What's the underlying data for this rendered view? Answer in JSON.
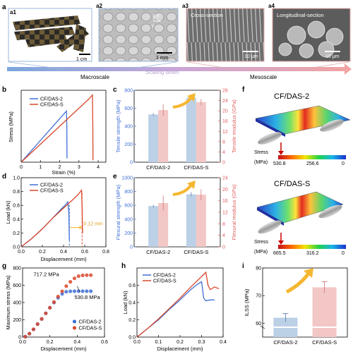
{
  "panel_a": {
    "labels": [
      "a1",
      "a2",
      "a3",
      "a4"
    ],
    "a1_scale": "1 cm",
    "a2_scale": "1 mm",
    "a3_title": "Cross-section",
    "a3_scale": "10 μm",
    "a4_title": "Longitudinal-section",
    "a4_scale": "10 μm",
    "macroscale": "Macroscale",
    "scaling": "Scaling down",
    "mesoscale": "Mesoscale",
    "axis_x": "x",
    "axis_y": "y"
  },
  "series_names": [
    "CF/DAS-2",
    "CF/DAS-S"
  ],
  "colors": {
    "das2": "#3f6fd6",
    "dass": "#d9482b",
    "bar_blue": "#bcd0e6",
    "bar_pink": "#f2c7c6",
    "arrow": "#f5b731"
  },
  "chart_data": [
    {
      "panel": "b",
      "type": "line",
      "xlabel": "Strain (%)",
      "ylabel": "Stress (MPa)",
      "xlim": [
        0,
        4.4
      ],
      "ylim": [
        0,
        760
      ],
      "xticks": [
        "0",
        "1",
        "2",
        "3",
        "4"
      ],
      "series": [
        {
          "name": "CF/DAS-2",
          "x": [
            0,
            0.5,
            1.0,
            1.5,
            2.0,
            2.35,
            2.37,
            2.38
          ],
          "y": [
            0,
            115,
            230,
            345,
            460,
            540,
            400,
            40
          ]
        },
        {
          "name": "CF/DAS-S",
          "x": [
            0,
            0.5,
            1.0,
            1.5,
            2.0,
            2.5,
            3.0,
            3.5,
            3.7,
            3.72,
            3.73
          ],
          "y": [
            0,
            95,
            190,
            285,
            380,
            475,
            570,
            665,
            710,
            400,
            20
          ]
        }
      ]
    },
    {
      "panel": "c",
      "type": "bar",
      "categories": [
        "CF/DAS-2",
        "CF/DAS-S"
      ],
      "ylabel_left": "Tensile strength (MPa)",
      "ylabel_right": "Tensile modulus (GPa)",
      "ylim_left": [
        0,
        800
      ],
      "yticks_left": [
        "0",
        "200",
        "400",
        "600",
        "800"
      ],
      "ylim_right": [
        0,
        28
      ],
      "yticks_right": [
        "0",
        "4",
        "8",
        "12",
        "16",
        "20",
        "24",
        "28"
      ],
      "strength": [
        530.8,
        717.2
      ],
      "strength_err": [
        15,
        20
      ],
      "modulus": [
        20.3,
        23.4
      ],
      "modulus_err": [
        2.3,
        1.2
      ]
    },
    {
      "panel": "d",
      "type": "line",
      "xlabel": "Displacement (mm)",
      "ylabel": "Load (kN)",
      "xlim": [
        0,
        0.8
      ],
      "ylim": [
        0,
        1.0
      ],
      "xticks": [
        "0.0",
        "0.2",
        "0.4",
        "0.6",
        "0.8"
      ],
      "yticks": [
        "0.0",
        "0.2",
        "0.4",
        "0.6",
        "0.8",
        "1.0"
      ],
      "series": [
        {
          "name": "CF/DAS-2",
          "x": [
            0,
            0.1,
            0.2,
            0.3,
            0.38,
            0.42,
            0.44,
            0.45,
            0.455
          ],
          "y": [
            0,
            0.12,
            0.26,
            0.42,
            0.55,
            0.61,
            0.65,
            0.5,
            0.1
          ]
        },
        {
          "name": "CF/DAS-S",
          "x": [
            0,
            0.1,
            0.2,
            0.3,
            0.4,
            0.5,
            0.54,
            0.56,
            0.57,
            0.575,
            0.58
          ],
          "y": [
            0,
            0.12,
            0.26,
            0.42,
            0.56,
            0.7,
            0.76,
            0.8,
            0.82,
            0.6,
            0.2
          ]
        }
      ],
      "annotation": "0.12 mm"
    },
    {
      "panel": "e",
      "type": "bar",
      "categories": [
        "CF/DAS-2",
        "CF/DAS-S"
      ],
      "ylabel_left": "Flexural strength (MPa)",
      "ylabel_right": "Flexural modulus (GPa)",
      "ylim_left": [
        0,
        1000
      ],
      "yticks_left": [
        "0",
        "200",
        "400",
        "600",
        "800",
        "1000"
      ],
      "ylim_right": [
        0,
        24
      ],
      "yticks_right": [
        "0",
        "4",
        "8",
        "12",
        "16",
        "20",
        "24"
      ],
      "strength": [
        590,
        760
      ],
      "strength_err": [
        20,
        30
      ],
      "modulus": [
        15.2,
        18.1
      ],
      "modulus_err": [
        2.6,
        1.9
      ]
    },
    {
      "panel": "g",
      "type": "scatter",
      "xlabel": "Displacement (mm)",
      "ylabel": "Maximum stress (MPa)",
      "xlim": [
        0,
        0.6
      ],
      "ylim": [
        0,
        800
      ],
      "xticks": [
        "0.0",
        "0.2",
        "0.4",
        "0.6"
      ],
      "yticks": [
        "0",
        "200",
        "400",
        "600",
        "800"
      ],
      "series": [
        {
          "name": "CF/DAS-2",
          "x": [
            0.02,
            0.05,
            0.08,
            0.11,
            0.14,
            0.17,
            0.2,
            0.23,
            0.26,
            0.29,
            0.32,
            0.35,
            0.38,
            0.41,
            0.44,
            0.47,
            0.5
          ],
          "y": [
            5,
            40,
            90,
            150,
            210,
            275,
            340,
            400,
            455,
            500,
            525,
            530,
            531,
            531,
            531,
            531,
            531
          ]
        },
        {
          "name": "CF/DAS-S",
          "x": [
            0.02,
            0.05,
            0.08,
            0.11,
            0.14,
            0.17,
            0.2,
            0.23,
            0.26,
            0.29,
            0.32,
            0.35,
            0.38,
            0.41,
            0.44,
            0.47,
            0.5
          ],
          "y": [
            5,
            40,
            90,
            150,
            210,
            275,
            340,
            405,
            470,
            530,
            590,
            640,
            680,
            705,
            715,
            717,
            717
          ]
        }
      ],
      "annotations": [
        "717.2 MPa",
        "530.8 MPa"
      ]
    },
    {
      "panel": "h",
      "type": "line",
      "xlabel": "Displacement (mm)",
      "ylabel": "Load (kN)",
      "xlim": [
        0,
        0.4
      ],
      "ylim": [
        0,
        0.8
      ],
      "xticks": [
        "0.0",
        "0.1",
        "0.2",
        "0.3",
        "0.4"
      ],
      "yticks": [
        "0.0",
        "0.2",
        "0.4",
        "0.6"
      ],
      "series": [
        {
          "name": "CF/DAS-2",
          "x": [
            0,
            0.05,
            0.1,
            0.15,
            0.2,
            0.25,
            0.28,
            0.3,
            0.31,
            0.32,
            0.34,
            0.36
          ],
          "y": [
            0,
            0.1,
            0.2,
            0.32,
            0.43,
            0.55,
            0.61,
            0.64,
            0.45,
            0.42,
            0.43,
            0.43
          ]
        },
        {
          "name": "CF/DAS-S",
          "x": [
            0,
            0.05,
            0.1,
            0.15,
            0.2,
            0.25,
            0.3,
            0.32,
            0.33,
            0.34,
            0.36,
            0.38
          ],
          "y": [
            0,
            0.1,
            0.21,
            0.33,
            0.45,
            0.58,
            0.7,
            0.75,
            0.6,
            0.55,
            0.58,
            0.56
          ]
        }
      ]
    },
    {
      "panel": "i",
      "type": "bar",
      "categories": [
        "CF/DAS-2",
        "CF/DAS-S"
      ],
      "ylabel": "ILSS (MPa)",
      "ylim": [
        55,
        80
      ],
      "yticks": [
        "60",
        "70",
        "80"
      ],
      "values": [
        62,
        73
      ],
      "err": [
        1.5,
        2
      ]
    }
  ],
  "panel_f": {
    "top_title": "CF/DAS-2",
    "bottom_title": "CF/DAS-S",
    "stress_label": "Stress",
    "unit_label": "(MPa)",
    "top_ticks": [
      "530.8",
      "256.6",
      "0"
    ],
    "bottom_ticks": [
      "665.5",
      "316.2",
      "0"
    ]
  },
  "panel_labels": [
    "b",
    "c",
    "d",
    "e",
    "f",
    "g",
    "h",
    "i"
  ]
}
